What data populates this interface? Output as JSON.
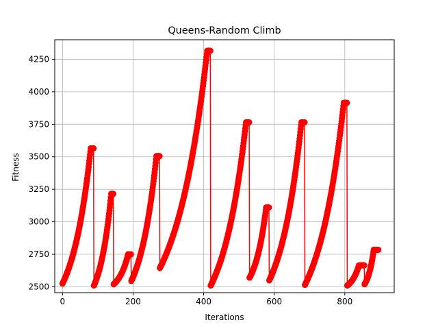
{
  "chart_data": {
    "type": "line",
    "title": "Queens-Random Climb",
    "xlabel": "Iterations",
    "ylabel": "Fitness",
    "xlim": [
      -22,
      940
    ],
    "ylim": [
      2455,
      4400
    ],
    "xticks": [
      0,
      200,
      400,
      600,
      800
    ],
    "yticks": [
      2500,
      2750,
      3000,
      3250,
      3500,
      3750,
      4000,
      4250
    ],
    "grid": true,
    "series": [
      {
        "color": "#ff0000",
        "marker": "circle",
        "segments": [
          {
            "x_start": 0,
            "x_end": 88,
            "y_start": 2525,
            "y_end": 3565,
            "plateau_from": 80
          },
          {
            "x_start": 89,
            "x_end": 144,
            "y_start": 2510,
            "y_end": 3215,
            "plateau_from": 138
          },
          {
            "x_start": 145,
            "x_end": 194,
            "y_start": 2520,
            "y_end": 2750,
            "plateau_from": 186
          },
          {
            "x_start": 195,
            "x_end": 275,
            "y_start": 2545,
            "y_end": 3505,
            "plateau_from": 266
          },
          {
            "x_start": 276,
            "x_end": 419,
            "y_start": 2645,
            "y_end": 4315,
            "plateau_from": 410
          },
          {
            "x_start": 420,
            "x_end": 529,
            "y_start": 2510,
            "y_end": 3765,
            "plateau_from": 520
          },
          {
            "x_start": 530,
            "x_end": 585,
            "y_start": 2570,
            "y_end": 3110,
            "plateau_from": 577
          },
          {
            "x_start": 586,
            "x_end": 686,
            "y_start": 2550,
            "y_end": 3765,
            "plateau_from": 677
          },
          {
            "x_start": 687,
            "x_end": 806,
            "y_start": 2515,
            "y_end": 3915,
            "plateau_from": 797
          },
          {
            "x_start": 807,
            "x_end": 855,
            "y_start": 2510,
            "y_end": 2665,
            "plateau_from": 840
          },
          {
            "x_start": 856,
            "x_end": 895,
            "y_start": 2520,
            "y_end": 2785,
            "plateau_from": 882
          }
        ]
      }
    ]
  }
}
